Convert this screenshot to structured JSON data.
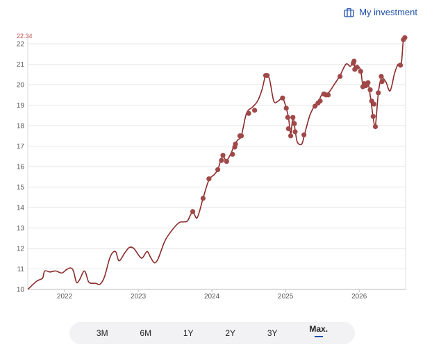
{
  "header": {
    "investment_link": "My investment",
    "icon": "briefcase-icon"
  },
  "colors": {
    "line": "#8b2a2a",
    "point": "#a04848",
    "accent": "#1b4fa8",
    "grid": "#e6e6e6"
  },
  "ranges": [
    {
      "label": "3M",
      "active": false
    },
    {
      "label": "6M",
      "active": false
    },
    {
      "label": "1Y",
      "active": false
    },
    {
      "label": "2Y",
      "active": false
    },
    {
      "label": "3Y",
      "active": false
    },
    {
      "label": "Max.",
      "active": true
    }
  ],
  "chart_data": {
    "type": "line",
    "max_label": "22.34",
    "xlim": [
      2021.5,
      2026.63
    ],
    "ylim": [
      10,
      22.34
    ],
    "x_ticks": [
      {
        "value": 2022,
        "label": "2022"
      },
      {
        "value": 2023,
        "label": "2023"
      },
      {
        "value": 2024,
        "label": "2024"
      },
      {
        "value": 2025,
        "label": "2025"
      },
      {
        "value": 2026,
        "label": "2026"
      }
    ],
    "y_ticks": [
      {
        "value": 10,
        "label": "10"
      },
      {
        "value": 11,
        "label": "11"
      },
      {
        "value": 12,
        "label": "12"
      },
      {
        "value": 13,
        "label": "13"
      },
      {
        "value": 14,
        "label": "14"
      },
      {
        "value": 15,
        "label": "15"
      },
      {
        "value": 16,
        "label": "16"
      },
      {
        "value": 17,
        "label": "17"
      },
      {
        "value": 18,
        "label": "18"
      },
      {
        "value": 19,
        "label": "19"
      },
      {
        "value": 20,
        "label": "20"
      },
      {
        "value": 21,
        "label": "21"
      },
      {
        "value": 22,
        "label": "22"
      }
    ],
    "grid": true,
    "series": [
      {
        "points": [
          [
            2021.5,
            10.0
          ],
          [
            2021.62,
            10.4
          ],
          [
            2021.7,
            10.55
          ],
          [
            2021.73,
            10.9
          ],
          [
            2021.8,
            10.85
          ],
          [
            2021.88,
            10.9
          ],
          [
            2021.96,
            10.8
          ],
          [
            2022.02,
            10.95
          ],
          [
            2022.08,
            11.05
          ],
          [
            2022.12,
            10.9
          ],
          [
            2022.16,
            10.35
          ],
          [
            2022.2,
            10.45
          ],
          [
            2022.27,
            10.9
          ],
          [
            2022.33,
            10.35
          ],
          [
            2022.42,
            10.3
          ],
          [
            2022.48,
            10.25
          ],
          [
            2022.54,
            10.6
          ],
          [
            2022.62,
            11.6
          ],
          [
            2022.69,
            11.85
          ],
          [
            2022.74,
            11.4
          ],
          [
            2022.82,
            11.8
          ],
          [
            2022.88,
            12.05
          ],
          [
            2022.94,
            12.0
          ],
          [
            2023.02,
            11.6
          ],
          [
            2023.06,
            11.55
          ],
          [
            2023.12,
            11.85
          ],
          [
            2023.17,
            11.55
          ],
          [
            2023.22,
            11.3
          ],
          [
            2023.27,
            11.5
          ],
          [
            2023.36,
            12.35
          ],
          [
            2023.45,
            12.85
          ],
          [
            2023.55,
            13.25
          ],
          [
            2023.62,
            13.3
          ],
          [
            2023.67,
            13.35
          ],
          [
            2023.74,
            13.8
          ],
          [
            2023.8,
            13.5
          ],
          [
            2023.88,
            14.45
          ],
          [
            2023.96,
            15.35
          ],
          [
            2024.03,
            15.6
          ],
          [
            2024.08,
            15.85
          ],
          [
            2024.12,
            16.3
          ],
          [
            2024.15,
            16.5
          ],
          [
            2024.2,
            16.3
          ],
          [
            2024.26,
            16.65
          ],
          [
            2024.3,
            17.0
          ],
          [
            2024.35,
            17.3
          ],
          [
            2024.4,
            17.5
          ],
          [
            2024.47,
            18.6
          ],
          [
            2024.55,
            18.9
          ],
          [
            2024.62,
            19.2
          ],
          [
            2024.68,
            19.75
          ],
          [
            2024.73,
            20.45
          ],
          [
            2024.78,
            20.3
          ],
          [
            2024.84,
            19.2
          ],
          [
            2024.9,
            19.2
          ],
          [
            2024.96,
            19.35
          ],
          [
            2025.01,
            18.85
          ],
          [
            2025.04,
            18.4
          ],
          [
            2025.07,
            17.6
          ],
          [
            2025.1,
            18.4
          ],
          [
            2025.13,
            17.8
          ],
          [
            2025.16,
            17.2
          ],
          [
            2025.22,
            17.1
          ],
          [
            2025.26,
            17.6
          ],
          [
            2025.33,
            18.5
          ],
          [
            2025.4,
            19.0
          ],
          [
            2025.45,
            19.2
          ],
          [
            2025.5,
            19.55
          ],
          [
            2025.58,
            19.6
          ],
          [
            2025.66,
            20.0
          ],
          [
            2025.74,
            20.45
          ],
          [
            2025.82,
            21.0
          ],
          [
            2025.88,
            20.9
          ],
          [
            2025.92,
            21.1
          ],
          [
            2025.95,
            20.75
          ],
          [
            2025.98,
            20.9
          ],
          [
            2026.02,
            20.7
          ],
          [
            2026.05,
            19.95
          ],
          [
            2026.08,
            20.0
          ],
          [
            2026.12,
            20.1
          ],
          [
            2026.16,
            19.2
          ],
          [
            2026.19,
            18.4
          ],
          [
            2026.22,
            18.0
          ],
          [
            2026.26,
            19.6
          ],
          [
            2026.3,
            20.3
          ],
          [
            2026.36,
            20.15
          ],
          [
            2026.42,
            19.7
          ],
          [
            2026.48,
            20.55
          ],
          [
            2026.53,
            21.0
          ],
          [
            2026.57,
            20.95
          ],
          [
            2026.6,
            22.2
          ],
          [
            2026.63,
            22.34
          ]
        ],
        "markers": [
          [
            2023.74,
            13.8
          ],
          [
            2023.88,
            14.45
          ],
          [
            2023.96,
            15.4
          ],
          [
            2024.08,
            15.85
          ],
          [
            2024.13,
            16.3
          ],
          [
            2024.15,
            16.55
          ],
          [
            2024.2,
            16.25
          ],
          [
            2024.28,
            16.6
          ],
          [
            2024.31,
            16.95
          ],
          [
            2024.32,
            17.1
          ],
          [
            2024.38,
            17.5
          ],
          [
            2024.4,
            17.5
          ],
          [
            2024.5,
            18.6
          ],
          [
            2024.58,
            18.75
          ],
          [
            2024.73,
            20.45
          ],
          [
            2024.75,
            20.45
          ],
          [
            2024.96,
            19.35
          ],
          [
            2025.01,
            18.85
          ],
          [
            2025.03,
            18.4
          ],
          [
            2025.04,
            17.85
          ],
          [
            2025.07,
            17.5
          ],
          [
            2025.1,
            18.4
          ],
          [
            2025.12,
            18.1
          ],
          [
            2025.13,
            17.7
          ],
          [
            2025.25,
            17.55
          ],
          [
            2025.4,
            18.95
          ],
          [
            2025.44,
            19.1
          ],
          [
            2025.47,
            19.2
          ],
          [
            2025.52,
            19.55
          ],
          [
            2025.55,
            19.5
          ],
          [
            2025.58,
            19.5
          ],
          [
            2025.74,
            20.4
          ],
          [
            2025.92,
            21.05
          ],
          [
            2025.93,
            21.15
          ],
          [
            2025.94,
            20.75
          ],
          [
            2025.97,
            20.85
          ],
          [
            2026.02,
            20.65
          ],
          [
            2026.05,
            19.9
          ],
          [
            2026.07,
            20.05
          ],
          [
            2026.09,
            19.95
          ],
          [
            2026.12,
            20.1
          ],
          [
            2026.15,
            19.75
          ],
          [
            2026.17,
            19.2
          ],
          [
            2026.19,
            18.45
          ],
          [
            2026.2,
            19.05
          ],
          [
            2026.22,
            17.95
          ],
          [
            2026.26,
            19.6
          ],
          [
            2026.3,
            20.4
          ],
          [
            2026.31,
            20.15
          ],
          [
            2026.56,
            20.95
          ],
          [
            2026.6,
            22.2
          ],
          [
            2026.62,
            22.3
          ]
        ]
      }
    ]
  }
}
